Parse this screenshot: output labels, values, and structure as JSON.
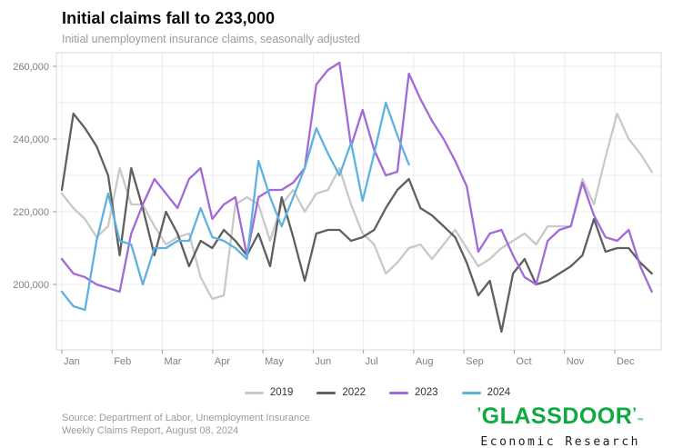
{
  "header": {
    "title": "Initial claims fall to 233,000",
    "subtitle": "Initial unemployment insurance claims, seasonally adjusted"
  },
  "chart_data": {
    "type": "line",
    "title": "Initial claims fall to 233,000",
    "subtitle": "Initial unemployment insurance claims, seasonally adjusted",
    "units": "claims per week (values stored in thousands)",
    "x": "week of year (weekly observations)",
    "x_tick_labels": [
      "Jan",
      "Feb",
      "Mar",
      "Apr",
      "May",
      "Jun",
      "Jul",
      "Aug",
      "Sep",
      "Oct",
      "Nov",
      "Dec"
    ],
    "y_tick_labels": [
      "200,000",
      "220,000",
      "240,000",
      "260,000"
    ],
    "y_gridline_step_thousands": 10,
    "y_range_thousands": [
      186,
      263
    ],
    "grid": true,
    "legend_position": "bottom-center",
    "series": [
      {
        "name": "2019",
        "color": "#c9c9c9",
        "values_thousands": [
          225,
          221,
          218,
          213,
          216,
          232,
          222,
          222,
          216,
          211,
          213,
          214,
          202,
          196,
          197,
          222,
          224,
          222,
          212,
          222,
          226,
          220,
          225,
          226,
          232,
          222,
          214,
          211,
          203,
          206,
          210,
          211,
          207,
          211,
          215,
          210,
          205,
          207,
          210,
          212,
          214,
          211,
          216,
          216,
          216,
          229,
          222,
          235,
          247,
          240,
          236,
          231
        ]
      },
      {
        "name": "2022",
        "color": "#5f5f5f",
        "values_thousands": [
          226,
          247,
          243,
          238,
          230,
          208,
          232,
          221,
          208,
          220,
          214,
          205,
          212,
          210,
          215,
          212,
          208,
          214,
          205,
          224,
          213,
          201,
          214,
          215,
          215,
          212,
          213,
          215,
          221,
          226,
          229,
          221,
          219,
          216,
          213,
          206,
          197,
          201,
          187,
          203,
          207,
          200,
          201,
          203,
          205,
          208,
          218,
          209,
          210,
          210,
          206,
          203
        ]
      },
      {
        "name": "2023",
        "color": "#a269d9",
        "values_thousands": [
          207,
          203,
          202,
          200,
          199,
          198,
          214,
          222,
          229,
          225,
          221,
          229,
          232,
          218,
          222,
          224,
          208,
          224,
          226,
          226,
          228,
          232,
          255,
          259,
          261,
          238,
          248,
          237,
          230,
          231,
          258,
          251,
          245,
          240,
          234,
          227,
          209,
          214,
          215,
          208,
          202,
          200,
          212,
          215,
          216,
          228,
          219,
          213,
          212,
          215,
          205,
          198
        ]
      },
      {
        "name": "2024",
        "color": "#5db3e0",
        "values_thousands": [
          198,
          194,
          193,
          212,
          225,
          212,
          211,
          200,
          210,
          210,
          212,
          212,
          221,
          213,
          212,
          210,
          207,
          234,
          224,
          216,
          224,
          232,
          243,
          236,
          230,
          239,
          223,
          236,
          250,
          241,
          233
        ]
      }
    ]
  },
  "footer": {
    "source_line1": "Source: Department of Labor, Unemployment Insurance",
    "source_line2": "Weekly Claims Report, August 08, 2024",
    "logo": {
      "word": "GLASSDOOR",
      "open_mark": "’",
      "close_mark": "’",
      "trademark": "™",
      "brand_color": "#0caa41",
      "sub_text": "Economic Research"
    }
  }
}
